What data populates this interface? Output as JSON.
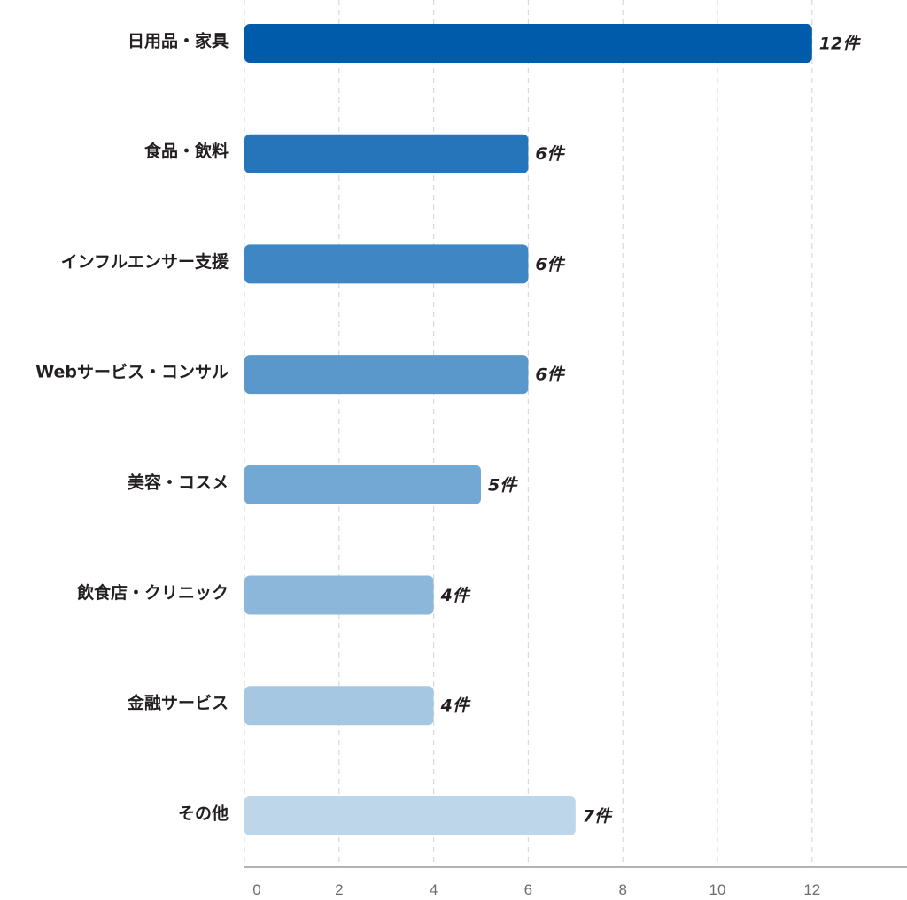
{
  "chart_data": {
    "type": "bar",
    "orientation": "horizontal",
    "categories": [
      "日用品・家具",
      "食品・飲料",
      "インフルエンサー支援",
      "Webサービス・コンサル",
      "美容・コスメ",
      "飲食店・クリニック",
      "金融サービス",
      "その他"
    ],
    "values": [
      12,
      6,
      6,
      6,
      5,
      4,
      4,
      7
    ],
    "value_labels": [
      "12件",
      "6件",
      "6件",
      "6件",
      "5件",
      "4件",
      "4件",
      "7件"
    ],
    "bar_colors": [
      "#005bab",
      "#2675ba",
      "#3e86c4",
      "#5a98cc",
      "#74a8d4",
      "#8cb7da",
      "#a5c7e2",
      "#bed6ea"
    ],
    "x_ticks": [
      0,
      2,
      4,
      6,
      8,
      10,
      12
    ],
    "xlim": [
      0,
      12
    ],
    "title": "",
    "xlabel": "",
    "ylabel": "",
    "grid": "vertical dashed",
    "legend": "none"
  }
}
